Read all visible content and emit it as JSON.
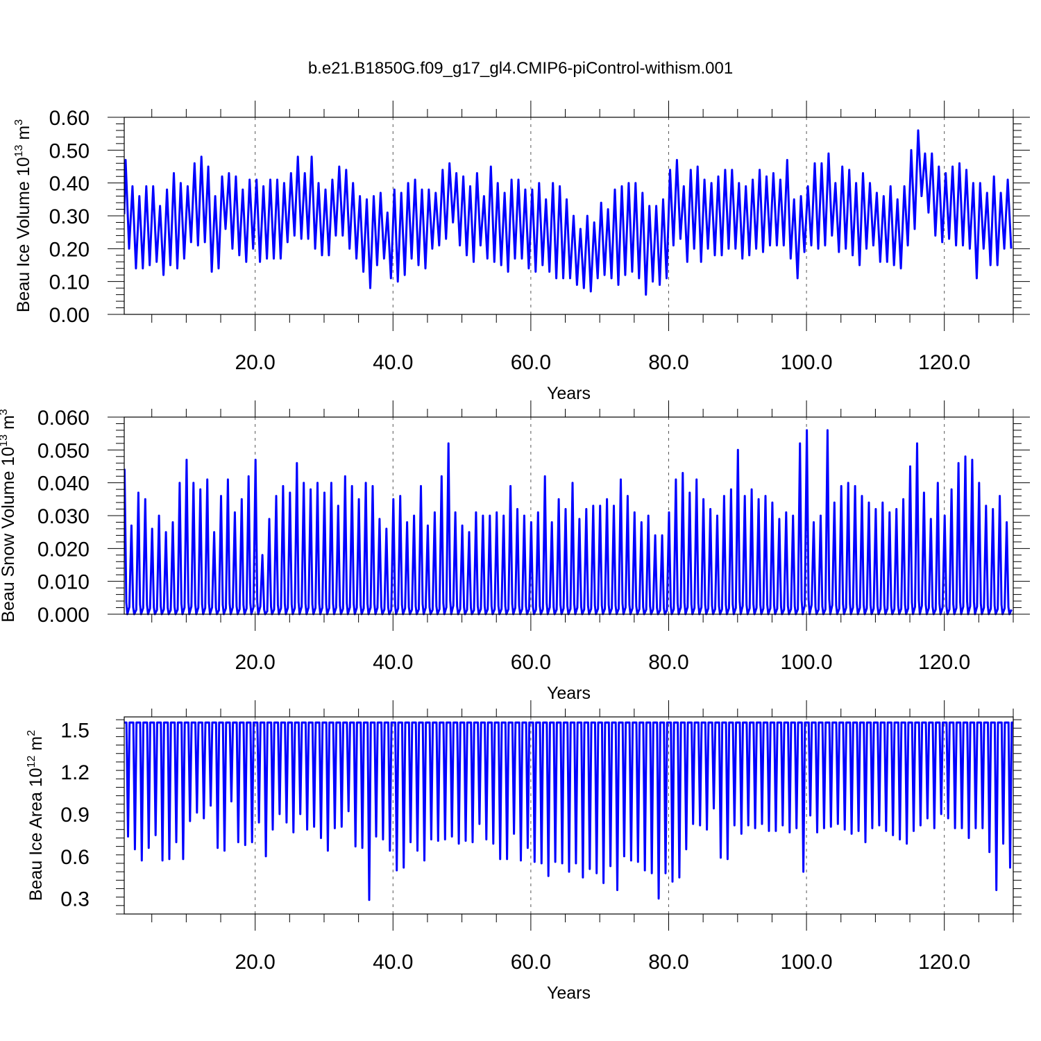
{
  "figure": {
    "title": "b.e21.B1850G.f09_g17_gl4.CMIP6-piControl-withism.001"
  },
  "chart_data": [
    {
      "type": "line",
      "ylabel": {
        "text": "Beau Ice Volume 10",
        "exp": "13",
        "unit": " m",
        "unit_exp": "3"
      },
      "xlabel": "Years",
      "xlim": [
        1,
        130
      ],
      "ylim": [
        0,
        0.6
      ],
      "xticks": [
        "20.0",
        "40.0",
        "60.0",
        "80.0",
        "100.0",
        "120.0"
      ],
      "yticks": [
        "0.00",
        "0.10",
        "0.20",
        "0.30",
        "0.40",
        "0.50",
        "0.60"
      ],
      "grid": "vertical dashed at major x ticks",
      "series_color": "#0000ff",
      "series": [
        {
          "peaks": [
            0.47,
            0.39,
            0.36,
            0.39,
            0.39,
            0.33,
            0.38,
            0.43,
            0.4,
            0.39,
            0.46,
            0.48,
            0.45,
            0.36,
            0.42,
            0.43,
            0.42,
            0.38,
            0.41,
            0.41,
            0.39,
            0.41,
            0.41,
            0.4,
            0.43,
            0.48,
            0.43,
            0.48,
            0.4,
            0.38,
            0.41,
            0.45,
            0.44,
            0.4,
            0.36,
            0.35,
            0.36,
            0.37,
            0.31,
            0.38,
            0.37,
            0.4,
            0.41,
            0.38,
            0.38,
            0.37,
            0.44,
            0.46,
            0.43,
            0.42,
            0.39,
            0.43,
            0.36,
            0.45,
            0.4,
            0.37,
            0.41,
            0.41,
            0.38,
            0.38,
            0.4,
            0.35,
            0.4,
            0.39,
            0.35,
            0.3,
            0.26,
            0.3,
            0.28,
            0.34,
            0.32,
            0.38,
            0.39,
            0.4,
            0.4,
            0.37,
            0.33,
            0.33,
            0.35,
            0.44,
            0.47,
            0.39,
            0.44,
            0.45,
            0.41,
            0.4,
            0.42,
            0.44,
            0.44,
            0.4,
            0.39,
            0.41,
            0.44,
            0.42,
            0.43,
            0.41,
            0.47,
            0.35,
            0.36,
            0.39,
            0.46,
            0.46,
            0.49,
            0.4,
            0.45,
            0.44,
            0.4,
            0.43,
            0.4,
            0.37,
            0.36,
            0.39,
            0.35,
            0.39,
            0.5,
            0.56,
            0.49,
            0.49,
            0.45,
            0.43,
            0.45,
            0.46,
            0.44,
            0.4,
            0.4,
            0.37,
            0.42,
            0.37,
            0.41
          ],
          "troughs": [
            0.2,
            0.14,
            0.14,
            0.15,
            0.16,
            0.12,
            0.15,
            0.14,
            0.17,
            0.22,
            0.21,
            0.22,
            0.13,
            0.14,
            0.26,
            0.2,
            0.18,
            0.16,
            0.2,
            0.16,
            0.17,
            0.17,
            0.17,
            0.22,
            0.24,
            0.23,
            0.23,
            0.2,
            0.18,
            0.18,
            0.24,
            0.24,
            0.2,
            0.17,
            0.13,
            0.08,
            0.15,
            0.17,
            0.11,
            0.1,
            0.12,
            0.17,
            0.15,
            0.14,
            0.2,
            0.21,
            0.23,
            0.28,
            0.21,
            0.18,
            0.16,
            0.21,
            0.17,
            0.16,
            0.15,
            0.13,
            0.17,
            0.17,
            0.14,
            0.13,
            0.15,
            0.13,
            0.11,
            0.11,
            0.11,
            0.09,
            0.08,
            0.07,
            0.11,
            0.12,
            0.11,
            0.09,
            0.12,
            0.13,
            0.11,
            0.06,
            0.1,
            0.09,
            0.11,
            0.21,
            0.23,
            0.16,
            0.2,
            0.16,
            0.2,
            0.18,
            0.18,
            0.2,
            0.2,
            0.17,
            0.18,
            0.2,
            0.19,
            0.21,
            0.21,
            0.21,
            0.17,
            0.11,
            0.19,
            0.21,
            0.2,
            0.21,
            0.24,
            0.19,
            0.2,
            0.18,
            0.15,
            0.2,
            0.21,
            0.16,
            0.16,
            0.15,
            0.14,
            0.21,
            0.26,
            0.36,
            0.31,
            0.24,
            0.22,
            0.23,
            0.21,
            0.21,
            0.2,
            0.11,
            0.2,
            0.15,
            0.15,
            0.2,
            0.2
          ]
        }
      ]
    },
    {
      "type": "line",
      "ylabel": {
        "text": "Beau Snow Volume 10",
        "exp": "13",
        "unit": " m",
        "unit_exp": "3"
      },
      "xlabel": "Years",
      "xlim": [
        1,
        130
      ],
      "ylim": [
        0,
        0.06
      ],
      "xticks": [
        "20.0",
        "40.0",
        "60.0",
        "80.0",
        "100.0",
        "120.0"
      ],
      "yticks": [
        "0.000",
        "0.010",
        "0.020",
        "0.030",
        "0.040",
        "0.050",
        "0.060"
      ],
      "grid": "vertical dashed at major x ticks",
      "series_color": "#0000ff",
      "series": [
        {
          "peaks": [
            0.044,
            0.027,
            0.037,
            0.035,
            0.026,
            0.03,
            0.025,
            0.028,
            0.04,
            0.047,
            0.04,
            0.038,
            0.041,
            0.025,
            0.036,
            0.041,
            0.031,
            0.035,
            0.042,
            0.047,
            0.018,
            0.029,
            0.036,
            0.039,
            0.037,
            0.046,
            0.04,
            0.038,
            0.04,
            0.037,
            0.04,
            0.033,
            0.042,
            0.039,
            0.035,
            0.04,
            0.039,
            0.029,
            0.026,
            0.035,
            0.036,
            0.028,
            0.03,
            0.039,
            0.027,
            0.031,
            0.042,
            0.052,
            0.031,
            0.027,
            0.025,
            0.031,
            0.03,
            0.03,
            0.031,
            0.03,
            0.039,
            0.032,
            0.03,
            0.028,
            0.031,
            0.042,
            0.028,
            0.035,
            0.032,
            0.04,
            0.029,
            0.032,
            0.033,
            0.033,
            0.035,
            0.033,
            0.041,
            0.036,
            0.031,
            0.028,
            0.03,
            0.024,
            0.024,
            0.031,
            0.041,
            0.043,
            0.037,
            0.041,
            0.035,
            0.032,
            0.03,
            0.036,
            0.038,
            0.05,
            0.036,
            0.038,
            0.035,
            0.036,
            0.034,
            0.029,
            0.031,
            0.03,
            0.052,
            0.056,
            0.028,
            0.03,
            0.056,
            0.034,
            0.039,
            0.04,
            0.039,
            0.036,
            0.034,
            0.032,
            0.034,
            0.031,
            0.032,
            0.035,
            0.045,
            0.052,
            0.037,
            0.029,
            0.04,
            0.03,
            0.038,
            0.046,
            0.048,
            0.047,
            0.04,
            0.033,
            0.032,
            0.036,
            0.028
          ]
        }
      ]
    },
    {
      "type": "line",
      "ylabel": {
        "text": "Beau Ice Area 10",
        "exp": "12",
        "unit": " m",
        "unit_exp": "2"
      },
      "xlabel": "Years",
      "xlim": [
        1,
        130
      ],
      "ylim": [
        0.19,
        1.59
      ],
      "xticks": [
        "20.0",
        "40.0",
        "60.0",
        "80.0",
        "100.0",
        "120.0"
      ],
      "yticks": [
        "0.3",
        "0.6",
        "0.9",
        "1.2",
        "1.5"
      ],
      "grid": "vertical dashed at major x ticks",
      "series_color": "#0000ff",
      "series": [
        {
          "max": 1.55,
          "troughs": [
            0.74,
            0.65,
            0.57,
            0.66,
            0.75,
            0.57,
            0.58,
            0.7,
            0.58,
            0.85,
            0.91,
            0.87,
            0.96,
            0.66,
            0.64,
            0.99,
            0.7,
            0.68,
            0.7,
            0.84,
            0.6,
            0.79,
            0.9,
            0.84,
            0.77,
            0.9,
            0.79,
            0.81,
            0.73,
            0.64,
            0.8,
            0.81,
            0.92,
            0.67,
            0.66,
            0.29,
            0.74,
            0.72,
            0.64,
            0.5,
            0.52,
            0.7,
            0.64,
            0.57,
            0.72,
            0.71,
            0.72,
            0.74,
            0.69,
            0.71,
            0.7,
            0.83,
            0.72,
            0.69,
            0.58,
            0.58,
            0.76,
            0.57,
            0.66,
            0.56,
            0.55,
            0.46,
            0.56,
            0.55,
            0.49,
            0.55,
            0.45,
            0.51,
            0.48,
            0.41,
            0.53,
            0.36,
            0.6,
            0.57,
            0.56,
            0.5,
            0.48,
            0.3,
            0.48,
            0.42,
            0.45,
            0.65,
            0.83,
            0.82,
            0.79,
            0.94,
            0.59,
            0.58,
            0.82,
            0.76,
            0.82,
            0.8,
            0.83,
            0.78,
            0.78,
            0.82,
            0.77,
            0.8,
            0.49,
            0.89,
            0.77,
            0.8,
            0.81,
            0.83,
            0.79,
            0.76,
            0.78,
            0.7,
            0.8,
            0.82,
            0.78,
            0.75,
            0.72,
            0.69,
            0.78,
            0.82,
            0.87,
            0.8,
            0.9,
            0.87,
            0.8,
            0.8,
            0.73,
            0.8,
            0.8,
            0.63,
            0.36,
            0.69,
            0.52
          ]
        }
      ]
    }
  ]
}
